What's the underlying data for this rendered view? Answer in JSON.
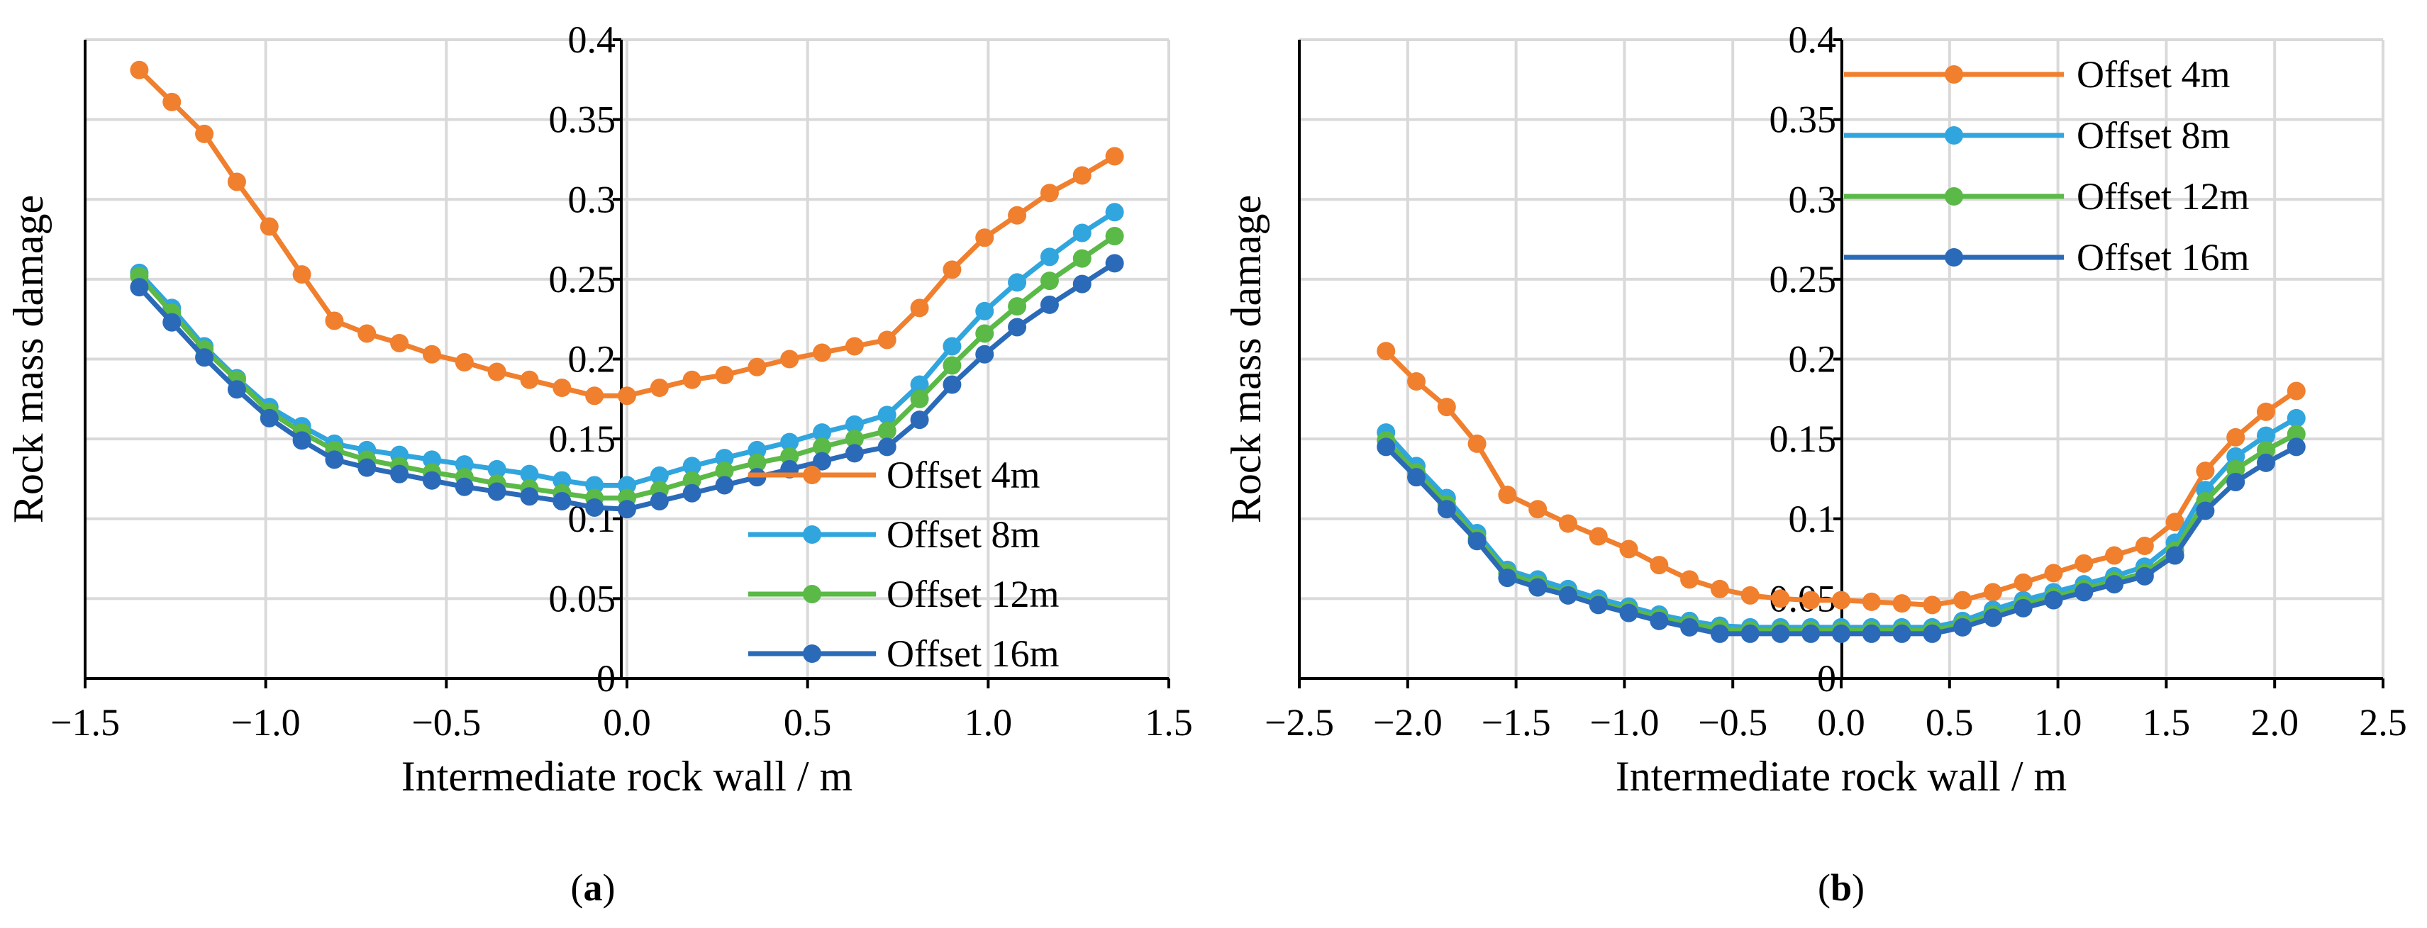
{
  "chart_data": [
    {
      "type": "line",
      "panel_label": "(a)",
      "xlabel": "Intermediate rock wall / m",
      "ylabel": "Rock mass damage",
      "xlim": [
        -1.5,
        1.5
      ],
      "ylim": [
        0,
        0.4
      ],
      "xticks": [
        -1.5,
        -1.0,
        -0.5,
        0.0,
        0.5,
        1.0,
        1.5
      ],
      "xtick_labels": [
        "−1.5",
        "−1.0",
        "−0.5",
        "0.0",
        "0.5",
        "1.0",
        "1.5"
      ],
      "yticks": [
        0,
        0.05,
        0.1,
        0.15,
        0.2,
        0.25,
        0.3,
        0.35,
        0.4
      ],
      "ytick_labels": [
        "0",
        "0.05",
        "0.1",
        "0.15",
        "0.2",
        "0.25",
        "0.3",
        "0.35",
        "0.4"
      ],
      "grid": true,
      "legend_position": "bottom-right",
      "x": [
        -1.35,
        -1.26,
        -1.17,
        -1.08,
        -0.99,
        -0.9,
        -0.81,
        -0.72,
        -0.63,
        -0.54,
        -0.45,
        -0.36,
        -0.27,
        -0.18,
        -0.09,
        0.0,
        0.09,
        0.18,
        0.27,
        0.36,
        0.45,
        0.54,
        0.63,
        0.72,
        0.81,
        0.9,
        0.99,
        1.08,
        1.17,
        1.26,
        1.35
      ],
      "series": [
        {
          "name": "Offset 4m",
          "color": "#F07F2E",
          "values": [
            0.381,
            0.361,
            0.341,
            0.311,
            0.283,
            0.253,
            0.224,
            0.216,
            0.21,
            0.203,
            0.198,
            0.192,
            0.187,
            0.182,
            0.177,
            0.177,
            0.182,
            0.187,
            0.19,
            0.195,
            0.2,
            0.204,
            0.208,
            0.212,
            0.232,
            0.256,
            0.276,
            0.29,
            0.304,
            0.315,
            0.327
          ]
        },
        {
          "name": "Offset 8m",
          "color": "#31A5DD",
          "values": [
            0.254,
            0.232,
            0.208,
            0.188,
            0.17,
            0.158,
            0.147,
            0.143,
            0.14,
            0.137,
            0.134,
            0.131,
            0.128,
            0.124,
            0.121,
            0.121,
            0.127,
            0.133,
            0.138,
            0.143,
            0.148,
            0.154,
            0.159,
            0.165,
            0.184,
            0.208,
            0.23,
            0.248,
            0.264,
            0.279,
            0.292
          ]
        },
        {
          "name": "Offset 12m",
          "color": "#5AB947",
          "values": [
            0.252,
            0.229,
            0.206,
            0.187,
            0.167,
            0.154,
            0.143,
            0.137,
            0.133,
            0.129,
            0.126,
            0.122,
            0.119,
            0.116,
            0.113,
            0.113,
            0.118,
            0.124,
            0.13,
            0.135,
            0.139,
            0.145,
            0.15,
            0.155,
            0.175,
            0.196,
            0.216,
            0.233,
            0.249,
            0.263,
            0.277
          ]
        },
        {
          "name": "Offset 16m",
          "color": "#2A6AB8",
          "values": [
            0.245,
            0.223,
            0.201,
            0.181,
            0.163,
            0.149,
            0.137,
            0.132,
            0.128,
            0.124,
            0.12,
            0.117,
            0.114,
            0.111,
            0.107,
            0.106,
            0.111,
            0.116,
            0.121,
            0.126,
            0.131,
            0.136,
            0.141,
            0.145,
            0.162,
            0.184,
            0.203,
            0.22,
            0.234,
            0.247,
            0.26
          ]
        }
      ]
    },
    {
      "type": "line",
      "panel_label": "(b)",
      "xlabel": "Intermediate rock wall / m",
      "ylabel": "Rock mass damage",
      "xlim": [
        -2.5,
        2.5
      ],
      "ylim": [
        0,
        0.4
      ],
      "xticks": [
        -2.5,
        -2.0,
        -1.5,
        -1.0,
        -0.5,
        0.0,
        0.5,
        1.0,
        1.5,
        2.0,
        2.5
      ],
      "xtick_labels": [
        "−2.5",
        "−2.0",
        "−1.5",
        "−1.0",
        "−0.5",
        "0.0",
        "0.5",
        "1.0",
        "1.5",
        "2.0",
        "2.5"
      ],
      "yticks": [
        0,
        0.05,
        0.1,
        0.15,
        0.2,
        0.25,
        0.3,
        0.35,
        0.4
      ],
      "ytick_labels": [
        "0",
        "0.05",
        "0.1",
        "0.15",
        "0.2",
        "0.25",
        "0.3",
        "0.35",
        "0.4"
      ],
      "grid": true,
      "legend_position": "top-right",
      "x": [
        -2.1,
        -1.96,
        -1.82,
        -1.68,
        -1.54,
        -1.4,
        -1.26,
        -1.12,
        -0.98,
        -0.84,
        -0.7,
        -0.56,
        -0.42,
        -0.28,
        -0.14,
        0.0,
        0.14,
        0.28,
        0.42,
        0.56,
        0.7,
        0.84,
        0.98,
        1.12,
        1.26,
        1.4,
        1.54,
        1.68,
        1.82,
        1.96,
        2.1
      ],
      "series": [
        {
          "name": "Offset 4m",
          "color": "#F07F2E",
          "values": [
            0.205,
            0.186,
            0.17,
            0.147,
            0.115,
            0.106,
            0.097,
            0.089,
            0.081,
            0.071,
            0.062,
            0.056,
            0.052,
            0.05,
            0.049,
            0.049,
            0.048,
            0.047,
            0.046,
            0.049,
            0.054,
            0.06,
            0.066,
            0.072,
            0.077,
            0.083,
            0.098,
            0.13,
            0.151,
            0.167,
            0.18
          ]
        },
        {
          "name": "Offset 8m",
          "color": "#31A5DD",
          "values": [
            0.154,
            0.133,
            0.113,
            0.091,
            0.068,
            0.062,
            0.056,
            0.05,
            0.045,
            0.04,
            0.036,
            0.033,
            0.032,
            0.032,
            0.032,
            0.032,
            0.032,
            0.032,
            0.032,
            0.036,
            0.043,
            0.049,
            0.054,
            0.059,
            0.064,
            0.07,
            0.085,
            0.118,
            0.139,
            0.152,
            0.163
          ]
        },
        {
          "name": "Offset 12m",
          "color": "#5AB947",
          "values": [
            0.149,
            0.129,
            0.109,
            0.088,
            0.066,
            0.059,
            0.053,
            0.047,
            0.043,
            0.038,
            0.034,
            0.031,
            0.03,
            0.03,
            0.03,
            0.03,
            0.03,
            0.03,
            0.03,
            0.034,
            0.04,
            0.046,
            0.051,
            0.056,
            0.061,
            0.066,
            0.08,
            0.111,
            0.131,
            0.143,
            0.153
          ]
        },
        {
          "name": "Offset 16m",
          "color": "#2A6AB8",
          "values": [
            0.145,
            0.126,
            0.106,
            0.086,
            0.063,
            0.057,
            0.052,
            0.046,
            0.041,
            0.036,
            0.032,
            0.028,
            0.028,
            0.028,
            0.028,
            0.028,
            0.028,
            0.028,
            0.028,
            0.032,
            0.038,
            0.044,
            0.049,
            0.054,
            0.059,
            0.064,
            0.077,
            0.105,
            0.123,
            0.135,
            0.145
          ]
        }
      ]
    }
  ]
}
